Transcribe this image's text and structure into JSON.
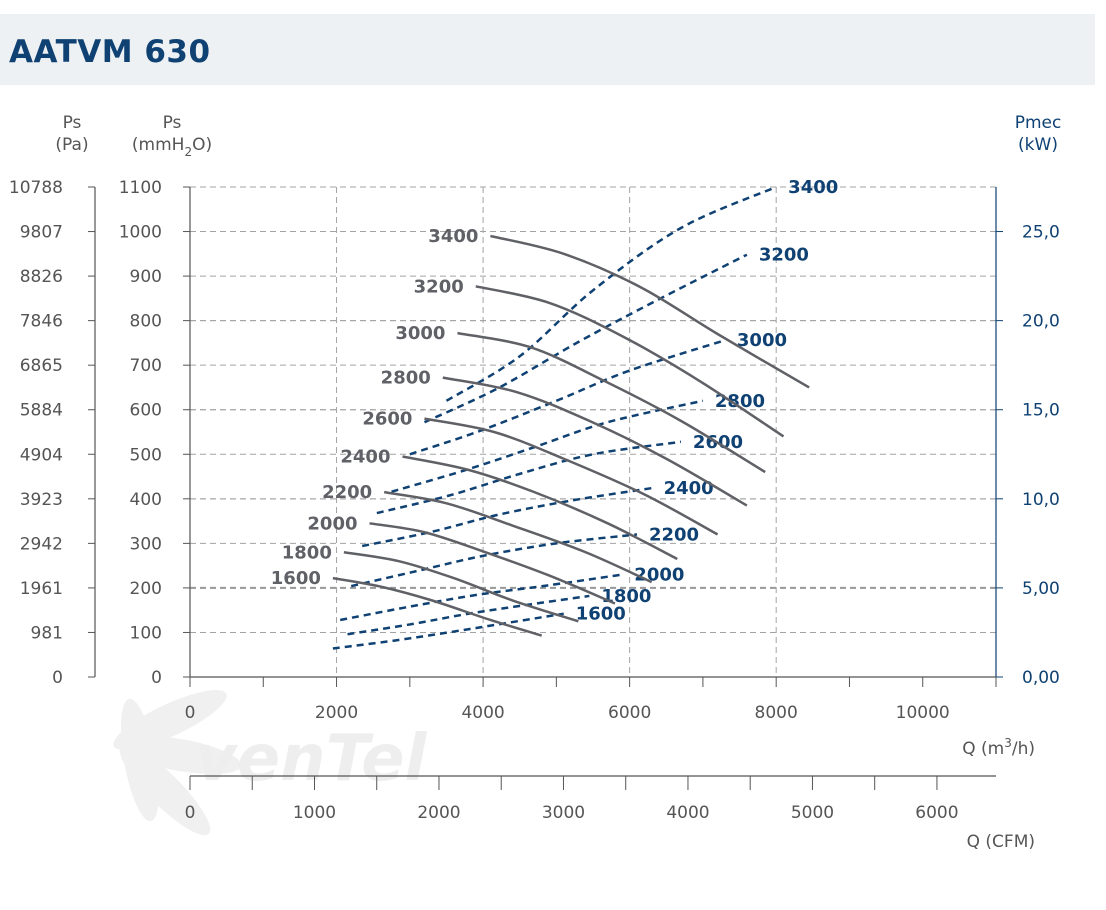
{
  "header": {
    "title": "AATVM 630"
  },
  "colors": {
    "pressure_curve": "#5f6167",
    "power_curve": "#0f4173",
    "grid": "#a3a3a3",
    "axis": "#555555"
  },
  "watermark": {
    "brand": "venTel"
  },
  "chart_data": {
    "type": "line",
    "title": "AATVM 630",
    "axes": {
      "left_pa": {
        "label": "Ps",
        "unit": "(Pa)",
        "ticks": [
          "10788",
          "9807",
          "8826",
          "7846",
          "6865",
          "5884",
          "4904",
          "3923",
          "2942",
          "1961",
          "981",
          "0"
        ]
      },
      "left_mmh2o": {
        "label": "Ps",
        "unit_parts": [
          "(mmH",
          "2",
          "O)"
        ],
        "range": [
          0,
          1100
        ],
        "ticks": [
          "1100",
          "1000",
          "900",
          "800",
          "700",
          "600",
          "500",
          "400",
          "300",
          "200",
          "100",
          "0"
        ]
      },
      "right_kw": {
        "label": "Pmec",
        "unit": "(kW)",
        "range": [
          0,
          27.5
        ],
        "ticks": [
          "25,0",
          "20,0",
          "15,0",
          "10,0",
          "5,00",
          "0,00"
        ]
      },
      "x_m3h": {
        "label_parts": [
          "Q (m",
          "3",
          "/h)"
        ],
        "range": [
          0,
          11000
        ],
        "ticks": [
          "0",
          "2000",
          "4000",
          "6000",
          "8000",
          "10000"
        ]
      },
      "x_cfm": {
        "label": "Q (CFM)",
        "ticks": [
          "0",
          "1000",
          "2000",
          "3000",
          "4000",
          "5000",
          "6000"
        ]
      }
    },
    "pressure_series": [
      {
        "name": "1600",
        "points": [
          [
            1950,
            222
          ],
          [
            2600,
            203
          ],
          [
            3300,
            172
          ],
          [
            4100,
            128
          ],
          [
            4800,
            93
          ]
        ]
      },
      {
        "name": "1800",
        "points": [
          [
            2100,
            280
          ],
          [
            2850,
            260
          ],
          [
            3600,
            222
          ],
          [
            4400,
            172
          ],
          [
            5300,
            125
          ]
        ]
      },
      {
        "name": "2000",
        "points": [
          [
            2450,
            345
          ],
          [
            3200,
            325
          ],
          [
            4000,
            282
          ],
          [
            4900,
            228
          ],
          [
            5800,
            165
          ]
        ]
      },
      {
        "name": "2200",
        "points": [
          [
            2650,
            415
          ],
          [
            3500,
            390
          ],
          [
            4400,
            340
          ],
          [
            5400,
            280
          ],
          [
            6300,
            213
          ]
        ]
      },
      {
        "name": "2400",
        "points": [
          [
            2900,
            495
          ],
          [
            3800,
            465
          ],
          [
            4700,
            415
          ],
          [
            5700,
            345
          ],
          [
            6650,
            265
          ]
        ]
      },
      {
        "name": "2600",
        "points": [
          [
            3200,
            580
          ],
          [
            4150,
            550
          ],
          [
            5100,
            490
          ],
          [
            6200,
            410
          ],
          [
            7200,
            320
          ]
        ]
      },
      {
        "name": "2800",
        "points": [
          [
            3450,
            672
          ],
          [
            4450,
            640
          ],
          [
            5450,
            575
          ],
          [
            6500,
            490
          ],
          [
            7600,
            385
          ]
        ]
      },
      {
        "name": "3000",
        "points": [
          [
            3650,
            772
          ],
          [
            4650,
            740
          ],
          [
            5650,
            665
          ],
          [
            6700,
            575
          ],
          [
            7850,
            460
          ]
        ]
      },
      {
        "name": "3200",
        "points": [
          [
            3900,
            877
          ],
          [
            4900,
            840
          ],
          [
            5900,
            765
          ],
          [
            6950,
            665
          ],
          [
            8100,
            540
          ]
        ]
      },
      {
        "name": "3400",
        "points": [
          [
            4100,
            990
          ],
          [
            5100,
            950
          ],
          [
            6150,
            875
          ],
          [
            7200,
            770
          ],
          [
            8450,
            650
          ]
        ]
      }
    ],
    "power_series": [
      {
        "name": "1600",
        "points": [
          [
            1950,
            1.6
          ],
          [
            2800,
            2.05
          ],
          [
            3600,
            2.55
          ],
          [
            4350,
            3.05
          ],
          [
            5100,
            3.55
          ]
        ]
      },
      {
        "name": "1800",
        "points": [
          [
            2150,
            2.4
          ],
          [
            3000,
            2.95
          ],
          [
            3800,
            3.55
          ],
          [
            4600,
            4.05
          ],
          [
            5450,
            4.55
          ]
        ]
      },
      {
        "name": "2000",
        "points": [
          [
            2050,
            3.2
          ],
          [
            3000,
            3.95
          ],
          [
            3900,
            4.6
          ],
          [
            4900,
            5.15
          ],
          [
            5900,
            5.75
          ]
        ]
      },
      {
        "name": "2200",
        "points": [
          [
            2200,
            5.1
          ],
          [
            3100,
            5.95
          ],
          [
            4000,
            6.8
          ],
          [
            5000,
            7.5
          ],
          [
            6100,
            8.0
          ]
        ]
      },
      {
        "name": "2400",
        "points": [
          [
            2350,
            7.35
          ],
          [
            3300,
            8.15
          ],
          [
            4200,
            9.1
          ],
          [
            5200,
            9.9
          ],
          [
            6300,
            10.6
          ]
        ]
      },
      {
        "name": "2600",
        "points": [
          [
            2550,
            9.2
          ],
          [
            3550,
            10.2
          ],
          [
            4500,
            11.4
          ],
          [
            5500,
            12.5
          ],
          [
            6700,
            13.2
          ]
        ]
      },
      {
        "name": "2800",
        "points": [
          [
            2750,
            10.4
          ],
          [
            3750,
            11.6
          ],
          [
            4700,
            12.9
          ],
          [
            5700,
            14.3
          ],
          [
            7000,
            15.5
          ]
        ]
      },
      {
        "name": "3000",
        "points": [
          [
            3000,
            12.5
          ],
          [
            3950,
            13.8
          ],
          [
            5000,
            15.5
          ],
          [
            6000,
            17.2
          ],
          [
            7300,
            18.9
          ]
        ]
      },
      {
        "name": "3200",
        "points": [
          [
            3200,
            14.3
          ],
          [
            4200,
            16.2
          ],
          [
            5300,
            18.8
          ],
          [
            6400,
            21.2
          ],
          [
            7600,
            23.7
          ]
        ]
      },
      {
        "name": "3400",
        "points": [
          [
            3500,
            15.5
          ],
          [
            4500,
            18.0
          ],
          [
            5500,
            21.7
          ],
          [
            6700,
            25.2
          ],
          [
            8000,
            27.5
          ]
        ]
      }
    ]
  }
}
